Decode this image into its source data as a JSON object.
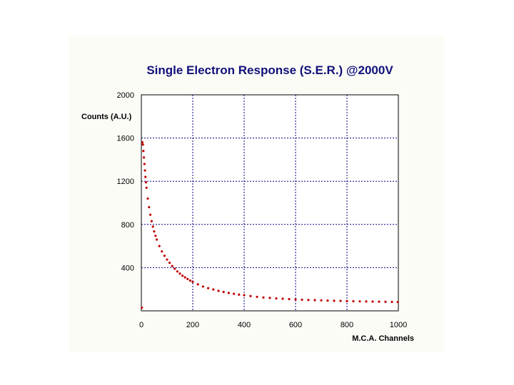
{
  "chart_data": {
    "type": "scatter",
    "title": "Single Electron Response (S.E.R.) @2000V",
    "xlabel": "M.C.A. Channels",
    "ylabel": "Counts (A.U.)",
    "xlim": [
      0,
      1000
    ],
    "ylim": [
      0,
      2000
    ],
    "x_ticks": [
      0,
      200,
      400,
      600,
      800,
      1000
    ],
    "y_ticks": [
      400,
      800,
      1200,
      1600,
      2000
    ],
    "grid": true,
    "series": [
      {
        "name": "S.E.R.",
        "color": "#c00000",
        "x": [
          2,
          4,
          6,
          8,
          10,
          12,
          14,
          16,
          18,
          20,
          25,
          30,
          35,
          40,
          45,
          50,
          55,
          60,
          70,
          80,
          90,
          100,
          110,
          120,
          130,
          140,
          150,
          160,
          170,
          180,
          190,
          200,
          220,
          240,
          260,
          280,
          300,
          320,
          340,
          360,
          380,
          400,
          425,
          450,
          475,
          500,
          525,
          550,
          575,
          600,
          625,
          650,
          675,
          700,
          725,
          750,
          775,
          800,
          825,
          850,
          875,
          900,
          925,
          950,
          975,
          998
        ],
        "y": [
          30,
          1560,
          1540,
          1480,
          1420,
          1360,
          1300,
          1240,
          1190,
          1140,
          1040,
          960,
          890,
          830,
          780,
          735,
          695,
          660,
          600,
          550,
          510,
          475,
          445,
          415,
          390,
          365,
          345,
          325,
          310,
          295,
          280,
          268,
          245,
          225,
          210,
          198,
          185,
          175,
          166,
          158,
          150,
          145,
          137,
          130,
          124,
          120,
          115,
          112,
          109,
          106,
          103,
          101,
          99,
          97,
          95,
          93,
          92,
          91,
          89,
          88,
          87,
          86,
          85,
          84,
          83,
          82
        ]
      }
    ]
  }
}
